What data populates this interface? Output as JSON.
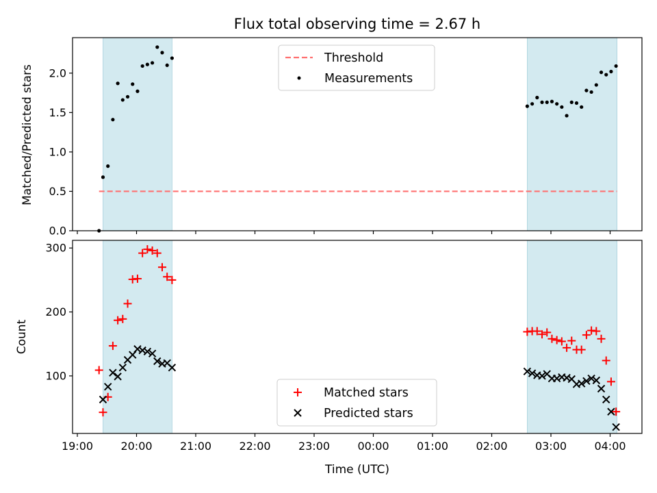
{
  "chart_data": {
    "type": "scatter",
    "title": "Flux total observing time = 2.67 h",
    "xlabel": "Time (UTC)",
    "x_ticks": [
      "19:00",
      "20:00",
      "21:00",
      "22:00",
      "23:00",
      "00:00",
      "01:00",
      "02:00",
      "03:00",
      "04:00"
    ],
    "shaded_intervals": [
      [
        "19:26",
        "20:36"
      ],
      [
        "02:36",
        "04:07"
      ]
    ],
    "shade_color": "#d3eaf0",
    "top_panel": {
      "ylabel": "Matched/Predicted stars",
      "ylim": [
        0,
        2.45
      ],
      "y_ticks": [
        "0.0",
        "0.5",
        "1.0",
        "1.5",
        "2.0"
      ],
      "threshold": {
        "name": "Threshold",
        "value": 0.5,
        "x_range": [
          "19:22",
          "04:07"
        ],
        "color": "#ff7070"
      },
      "legend": [
        "Threshold",
        "Measurements"
      ],
      "series": [
        {
          "name": "Measurements",
          "color": "#000000",
          "points": [
            [
              "19:22",
              0.0
            ],
            [
              "19:26",
              0.68
            ],
            [
              "19:31",
              0.82
            ],
            [
              "19:36",
              1.41
            ],
            [
              "19:41",
              1.87
            ],
            [
              "19:46",
              1.66
            ],
            [
              "19:51",
              1.7
            ],
            [
              "19:56",
              1.86
            ],
            [
              "20:01",
              1.77
            ],
            [
              "20:06",
              2.09
            ],
            [
              "20:11",
              2.11
            ],
            [
              "20:16",
              2.13
            ],
            [
              "20:21",
              2.33
            ],
            [
              "20:26",
              2.26
            ],
            [
              "20:31",
              2.1
            ],
            [
              "20:36",
              2.19
            ],
            [
              "02:36",
              1.58
            ],
            [
              "02:41",
              1.61
            ],
            [
              "02:46",
              1.69
            ],
            [
              "02:51",
              1.63
            ],
            [
              "02:56",
              1.63
            ],
            [
              "03:01",
              1.64
            ],
            [
              "03:06",
              1.61
            ],
            [
              "03:11",
              1.57
            ],
            [
              "03:16",
              1.46
            ],
            [
              "03:21",
              1.63
            ],
            [
              "03:26",
              1.62
            ],
            [
              "03:31",
              1.57
            ],
            [
              "03:36",
              1.78
            ],
            [
              "03:41",
              1.76
            ],
            [
              "03:46",
              1.85
            ],
            [
              "03:51",
              2.01
            ],
            [
              "03:56",
              1.98
            ],
            [
              "04:01",
              2.02
            ],
            [
              "04:06",
              2.09
            ]
          ]
        }
      ]
    },
    "bottom_panel": {
      "ylabel": "Count",
      "ylim": [
        10,
        312
      ],
      "y_ticks": [
        "100",
        "200",
        "300"
      ],
      "legend": [
        "Matched stars",
        "Predicted stars"
      ],
      "series": [
        {
          "name": "Matched stars",
          "marker": "+",
          "color": "#ff0000",
          "points": [
            [
              "19:22",
              109
            ],
            [
              "19:26",
              43
            ],
            [
              "19:31",
              67
            ],
            [
              "19:36",
              147
            ],
            [
              "19:41",
              187
            ],
            [
              "19:46",
              189
            ],
            [
              "19:51",
              213
            ],
            [
              "19:56",
              251
            ],
            [
              "20:01",
              252
            ],
            [
              "20:06",
              292
            ],
            [
              "20:11",
              298
            ],
            [
              "20:16",
              296
            ],
            [
              "20:21",
              292
            ],
            [
              "20:26",
              270
            ],
            [
              "20:31",
              255
            ],
            [
              "20:36",
              250
            ],
            [
              "02:36",
              169
            ],
            [
              "02:41",
              170
            ],
            [
              "02:46",
              170
            ],
            [
              "02:51",
              165
            ],
            [
              "02:56",
              168
            ],
            [
              "03:01",
              158
            ],
            [
              "03:06",
              156
            ],
            [
              "03:11",
              154
            ],
            [
              "03:16",
              144
            ],
            [
              "03:21",
              155
            ],
            [
              "03:26",
              141
            ],
            [
              "03:31",
              141
            ],
            [
              "03:36",
              164
            ],
            [
              "03:41",
              171
            ],
            [
              "03:46",
              170
            ],
            [
              "03:51",
              158
            ],
            [
              "03:56",
              124
            ],
            [
              "04:01",
              91
            ],
            [
              "04:06",
              44
            ]
          ]
        },
        {
          "name": "Predicted stars",
          "marker": "x",
          "color": "#000000",
          "points": [
            [
              "19:26",
              63
            ],
            [
              "19:31",
              83
            ],
            [
              "19:36",
              105
            ],
            [
              "19:41",
              99
            ],
            [
              "19:46",
              113
            ],
            [
              "19:51",
              125
            ],
            [
              "19:56",
              133
            ],
            [
              "20:01",
              142
            ],
            [
              "20:06",
              140
            ],
            [
              "20:11",
              138
            ],
            [
              "20:16",
              135
            ],
            [
              "20:21",
              123
            ],
            [
              "20:26",
              119
            ],
            [
              "20:31",
              120
            ],
            [
              "20:36",
              113
            ],
            [
              "02:36",
              107
            ],
            [
              "02:41",
              104
            ],
            [
              "02:46",
              101
            ],
            [
              "02:51",
              100
            ],
            [
              "02:56",
              103
            ],
            [
              "03:01",
              96
            ],
            [
              "03:06",
              96
            ],
            [
              "03:11",
              98
            ],
            [
              "03:16",
              97
            ],
            [
              "03:21",
              95
            ],
            [
              "03:26",
              87
            ],
            [
              "03:31",
              88
            ],
            [
              "03:36",
              92
            ],
            [
              "03:41",
              96
            ],
            [
              "03:46",
              93
            ],
            [
              "03:51",
              80
            ],
            [
              "03:56",
              63
            ],
            [
              "04:01",
              44
            ],
            [
              "04:06",
              20
            ]
          ]
        }
      ]
    }
  }
}
